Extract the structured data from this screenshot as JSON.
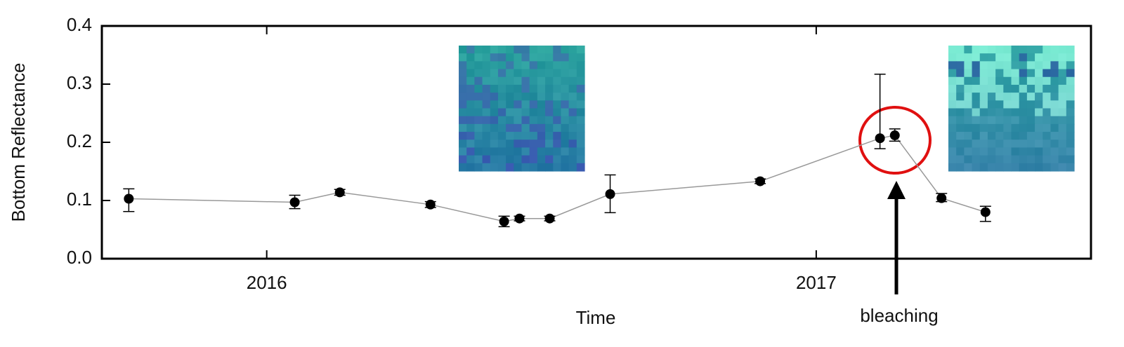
{
  "chart_data": {
    "type": "line",
    "x_label": "Time",
    "y_label": "Bottom Reflectance",
    "annotation": "bleaching",
    "xlim": [
      2015.7,
      2017.5
    ],
    "xticks": [
      2016,
      2017
    ],
    "ylim": [
      0,
      0.4
    ],
    "yticks": [
      {
        "value": 0,
        "label": "0.0"
      },
      0.1,
      0.2,
      0.3,
      0.4
    ],
    "series": [
      {
        "color": "#999999",
        "marker_color": "#000000",
        "x": [
          2015.749,
          2016.051,
          2016.133,
          2016.298,
          2016.432,
          2016.46,
          2016.515,
          2016.625,
          2016.898,
          2017.116,
          2017.143,
          2017.228,
          2017.308
        ],
        "values": [
          0.103,
          0.097,
          0.114,
          0.093,
          0.064,
          0.069,
          0.069,
          0.111,
          0.133,
          0.207,
          0.212,
          0.104,
          0.08
        ],
        "error_low": [
          0.022,
          0.011,
          0.005,
          0.005,
          0.009,
          0.004,
          0.004,
          0.032,
          0.004,
          0.018,
          0.01,
          0.006,
          0.016
        ],
        "error_high": [
          0.017,
          0.012,
          0.005,
          0.005,
          0.009,
          0.004,
          0.004,
          0.033,
          0.004,
          0.11,
          0.011,
          0.008,
          0.01
        ]
      }
    ]
  }
}
